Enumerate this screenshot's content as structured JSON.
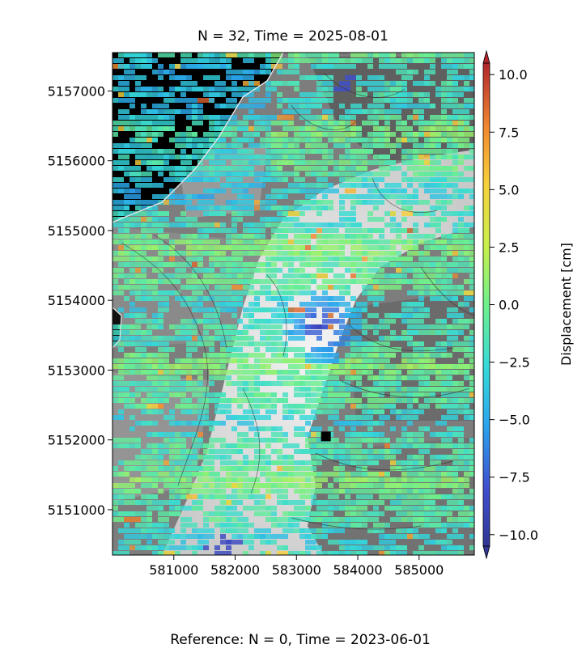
{
  "title": "N = 32, Time = 2025-08-01",
  "reference": "Reference: N = 0, Time = 2023-06-01",
  "map": {
    "x_ticks": [
      {
        "value": 581000,
        "label": "581000"
      },
      {
        "value": 582000,
        "label": "582000"
      },
      {
        "value": 583000,
        "label": "583000"
      },
      {
        "value": 584000,
        "label": "584000"
      },
      {
        "value": 585000,
        "label": "585000"
      }
    ],
    "y_ticks": [
      {
        "value": 5151000,
        "label": "5151000"
      },
      {
        "value": 5152000,
        "label": "5152000"
      },
      {
        "value": 5153000,
        "label": "5153000"
      },
      {
        "value": 5154000,
        "label": "5154000"
      },
      {
        "value": 5155000,
        "label": "5155000"
      },
      {
        "value": 5156000,
        "label": "5156000"
      },
      {
        "value": 5157000,
        "label": "5157000"
      }
    ],
    "x_range": [
      580000,
      585900
    ],
    "y_range": [
      5150350,
      5157550
    ],
    "reference_point": {
      "x": 583480,
      "y": 5152050
    },
    "low_anomaly": {
      "x": 583350,
      "y": 5153650
    }
  },
  "colorbar": {
    "label": "Displacement [cm]",
    "range": [
      -10.5,
      10.5
    ],
    "ticks": [
      {
        "value": 10.0,
        "label": "10.0"
      },
      {
        "value": 7.5,
        "label": "7.5"
      },
      {
        "value": 5.0,
        "label": "5.0"
      },
      {
        "value": 2.5,
        "label": "2.5"
      },
      {
        "value": 0.0,
        "label": "0.0"
      },
      {
        "value": -2.5,
        "label": "−2.5"
      },
      {
        "value": -5.0,
        "label": "−5.0"
      },
      {
        "value": -7.5,
        "label": "−7.5"
      },
      {
        "value": -10.0,
        "label": "−10.0"
      }
    ],
    "colormap": [
      "#313695",
      "#3f4fd0",
      "#2aa4ee",
      "#34d9d9",
      "#6ef08c",
      "#c7f04a",
      "#f7d13a",
      "#f0862e",
      "#b2262d"
    ]
  }
}
